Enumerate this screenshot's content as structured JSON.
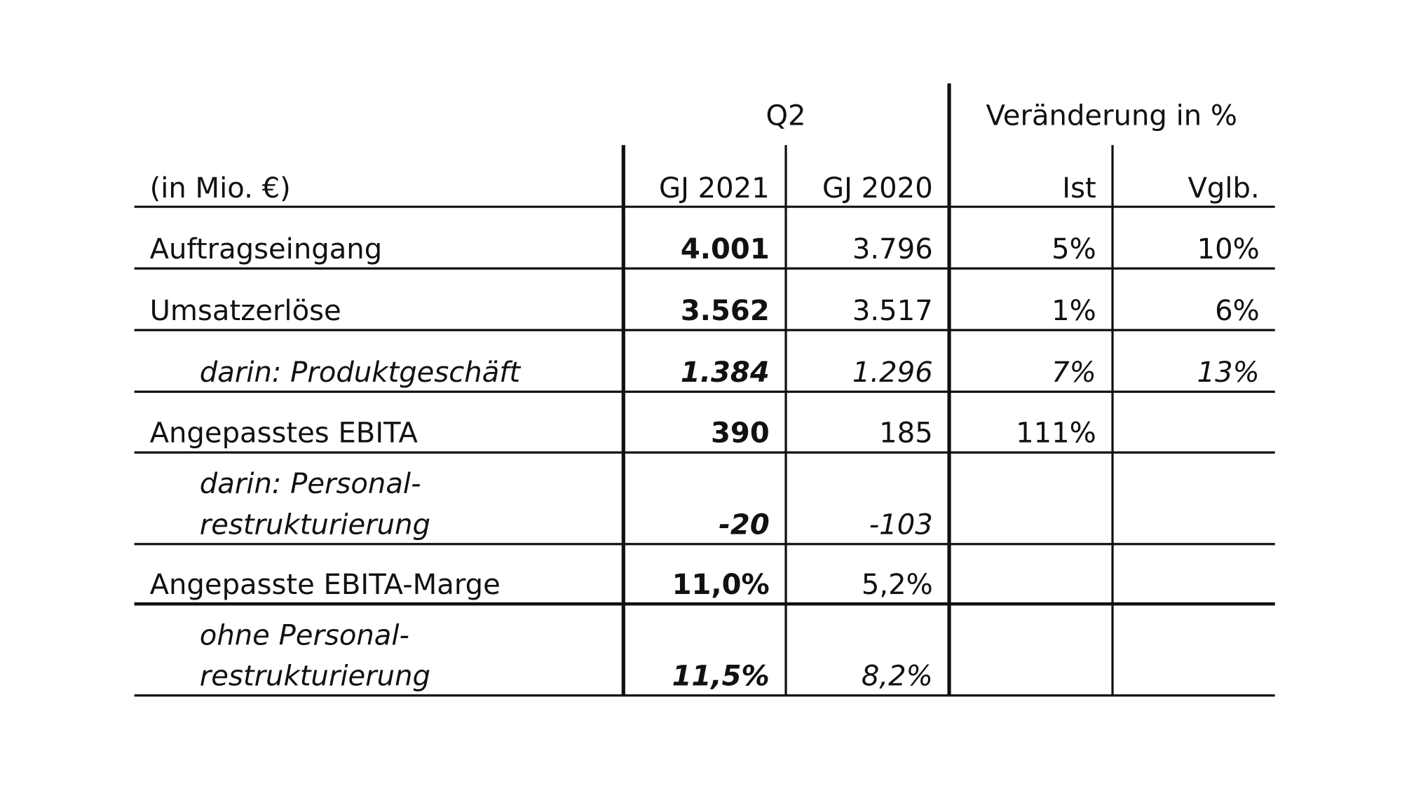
{
  "header": {
    "group_q2": "Q2",
    "group_change": "Veränderung in %",
    "unit": "(in Mio. €)",
    "columns": [
      "GJ 2021",
      "GJ 2020",
      "Ist",
      "Vglb."
    ]
  },
  "table": {
    "rows": [
      {
        "label": [
          "Auftragseingang"
        ],
        "cells": [
          "4.001",
          "3.796",
          "5%",
          "10%"
        ],
        "italic": false
      },
      {
        "label": [
          "Umsatzerlöse"
        ],
        "cells": [
          "3.562",
          "3.517",
          "1%",
          "6%"
        ],
        "italic": false
      },
      {
        "label": [
          "darin: Produktgeschäft"
        ],
        "cells": [
          "1.384",
          "1.296",
          "7%",
          "13%"
        ],
        "italic": true
      },
      {
        "label": [
          "Angepasstes EBITA"
        ],
        "cells": [
          "390",
          "185",
          "111%",
          null
        ],
        "italic": false
      },
      {
        "label": [
          "darin: Personal-",
          "restrukturierung"
        ],
        "cells": [
          "-20",
          "-103",
          null,
          null
        ],
        "italic": true
      },
      {
        "label": [
          "Angepasste EBITA-Marge"
        ],
        "cells": [
          "11,0%",
          "5,2%",
          null,
          null
        ],
        "italic": false
      },
      {
        "label": [
          "ohne Personal-",
          "restrukturierung"
        ],
        "cells": [
          "11,5%",
          "8,2%",
          null,
          null
        ],
        "italic": true
      }
    ]
  }
}
